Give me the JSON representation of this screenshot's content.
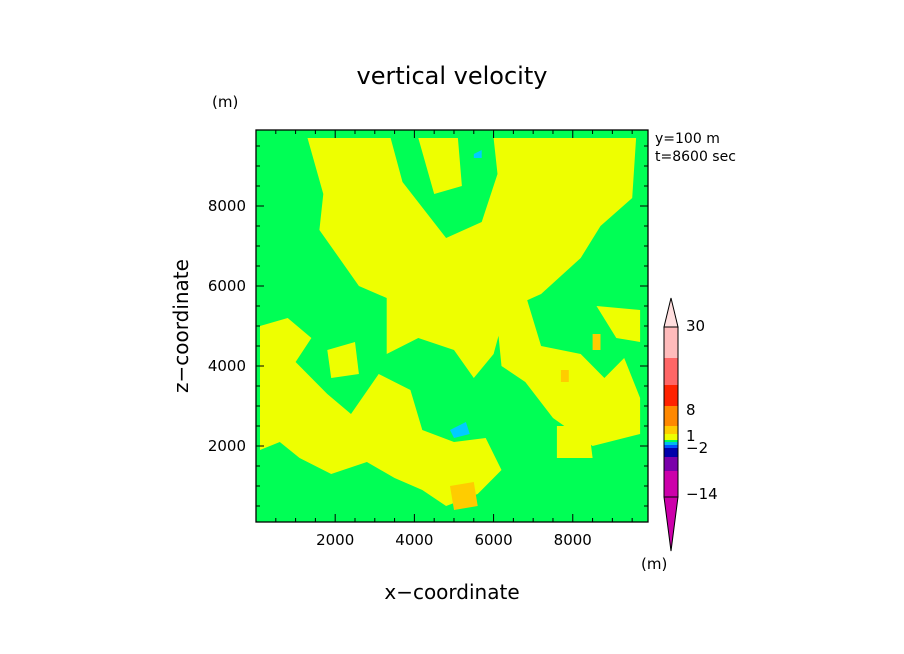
{
  "chart_data": {
    "type": "heatmap",
    "title": "vertical velocity",
    "xlabel": "x−coordinate",
    "ylabel": "z−coordinate",
    "x_unit": "(m)",
    "z_unit": "(m)",
    "annotation": [
      "y=100 m",
      "t=8600 sec"
    ],
    "xlim": [
      0,
      9900
    ],
    "ylim": [
      100,
      9900
    ],
    "x_ticks": [
      2000,
      4000,
      6000,
      8000
    ],
    "y_ticks": [
      2000,
      4000,
      6000,
      8000
    ],
    "x_tick_labels": [
      "2000",
      "4000",
      "6000",
      "8000"
    ],
    "y_tick_labels": [
      "2000",
      "4000",
      "6000",
      "8000"
    ],
    "colorbar": {
      "unit": "(m)",
      "labels": [
        {
          "value": 30,
          "text": "30"
        },
        {
          "value": 8,
          "text": "8"
        },
        {
          "value": 1,
          "text": "1"
        },
        {
          "value": -2,
          "text": "−2"
        },
        {
          "value": -14,
          "text": "−14"
        }
      ],
      "bands": [
        {
          "color": "#cc00aa"
        },
        {
          "color": "#7a00aa"
        },
        {
          "color": "#0000aa"
        },
        {
          "color": "#0050ff"
        },
        {
          "color": "#00bbee"
        },
        {
          "color": "#00ff55"
        },
        {
          "color": "#eeff00"
        },
        {
          "color": "#ffcc00"
        },
        {
          "color": "#ff8800"
        },
        {
          "color": "#ff2200"
        },
        {
          "color": "#ff6666"
        },
        {
          "color": "#ffbbbb"
        }
      ],
      "top_arrow_color": "#ffdede",
      "bottom_arrow_color": "#cc00aa"
    },
    "field": {
      "background_color": "#00ff55",
      "level_colors": {
        "positive": "#eeff00",
        "strong_positive": "#ffcc00",
        "negative": "#00ccff"
      },
      "positive_regions": [
        [
          [
            1300,
            9700
          ],
          [
            3400,
            9700
          ],
          [
            3700,
            8600
          ],
          [
            4800,
            7200
          ],
          [
            5700,
            7600
          ],
          [
            6100,
            8800
          ],
          [
            6000,
            9700
          ],
          [
            9600,
            9700
          ],
          [
            9500,
            8200
          ],
          [
            8700,
            7500
          ],
          [
            8200,
            6700
          ],
          [
            7200,
            5800
          ],
          [
            6300,
            5400
          ],
          [
            6000,
            4300
          ],
          [
            5500,
            3700
          ],
          [
            5000,
            4400
          ],
          [
            4100,
            4700
          ],
          [
            3300,
            4300
          ],
          [
            3300,
            5700
          ],
          [
            2600,
            6000
          ],
          [
            2100,
            6700
          ],
          [
            1600,
            7400
          ],
          [
            1700,
            8300
          ]
        ],
        [
          [
            4100,
            9700
          ],
          [
            5100,
            9700
          ],
          [
            5200,
            8500
          ],
          [
            4500,
            8300
          ]
        ],
        [
          [
            6000,
            6000
          ],
          [
            6800,
            5800
          ],
          [
            7200,
            4500
          ],
          [
            8200,
            4300
          ],
          [
            8800,
            3700
          ],
          [
            9300,
            4200
          ],
          [
            9700,
            3200
          ],
          [
            9700,
            2300
          ],
          [
            8500,
            2000
          ],
          [
            7500,
            2700
          ],
          [
            6800,
            3600
          ],
          [
            6200,
            4000
          ]
        ],
        [
          [
            100,
            5000
          ],
          [
            800,
            5200
          ],
          [
            1400,
            4700
          ],
          [
            1000,
            4100
          ],
          [
            1800,
            3300
          ],
          [
            2400,
            2800
          ],
          [
            3100,
            3800
          ],
          [
            3900,
            3400
          ],
          [
            4200,
            2400
          ],
          [
            5000,
            2100
          ],
          [
            5800,
            2200
          ],
          [
            6200,
            1400
          ],
          [
            5600,
            800
          ],
          [
            4800,
            500
          ],
          [
            4200,
            900
          ],
          [
            3500,
            1200
          ],
          [
            2800,
            1600
          ],
          [
            1900,
            1300
          ],
          [
            1100,
            1700
          ],
          [
            600,
            2100
          ],
          [
            100,
            1900
          ]
        ],
        [
          [
            1800,
            4400
          ],
          [
            2500,
            4600
          ],
          [
            2600,
            3800
          ],
          [
            1900,
            3700
          ]
        ],
        [
          [
            7600,
            2500
          ],
          [
            8400,
            2500
          ],
          [
            8500,
            1700
          ],
          [
            7600,
            1700
          ]
        ],
        [
          [
            8600,
            5500
          ],
          [
            9700,
            5400
          ],
          [
            9700,
            4600
          ],
          [
            9100,
            4700
          ]
        ]
      ],
      "strong_positive_regions": [
        [
          [
            4900,
            1000
          ],
          [
            5500,
            1100
          ],
          [
            5600,
            500
          ],
          [
            5000,
            400
          ]
        ],
        [
          [
            8500,
            4800
          ],
          [
            8700,
            4800
          ],
          [
            8700,
            4400
          ],
          [
            8500,
            4400
          ]
        ],
        [
          [
            7700,
            3900
          ],
          [
            7900,
            3900
          ],
          [
            7900,
            3600
          ],
          [
            7700,
            3600
          ]
        ]
      ],
      "negative_regions": [
        [
          [
            4900,
            2400
          ],
          [
            5300,
            2600
          ],
          [
            5400,
            2300
          ],
          [
            5000,
            2200
          ]
        ],
        [
          [
            5500,
            9300
          ],
          [
            5700,
            9400
          ],
          [
            5700,
            9200
          ],
          [
            5500,
            9200
          ]
        ]
      ]
    }
  }
}
